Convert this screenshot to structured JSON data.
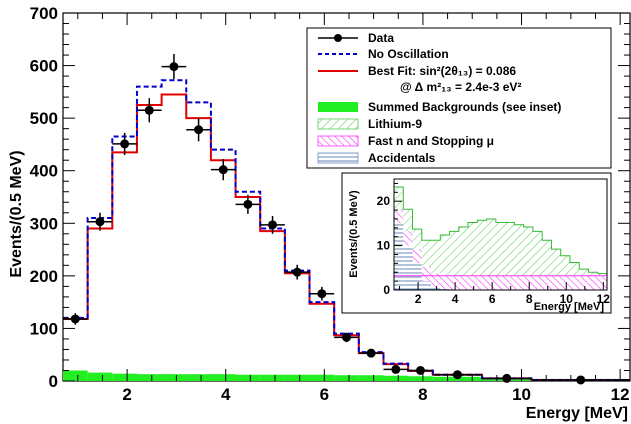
{
  "chart_data": [
    {
      "type": "line",
      "xlabel": "Energy [MeV]",
      "ylabel": "Events/(0.5 MeV)",
      "xlim": [
        0.7,
        12.2
      ],
      "ylim": [
        0,
        700
      ],
      "x_ticks": [
        "2",
        "4",
        "6",
        "8",
        "10",
        "12"
      ],
      "y_ticks": [
        "0",
        "100",
        "200",
        "300",
        "400",
        "500",
        "600",
        "700"
      ],
      "bin_edges": [
        0.7,
        1.2,
        1.7,
        2.2,
        2.7,
        3.2,
        3.7,
        4.2,
        4.7,
        5.2,
        5.7,
        6.2,
        6.7,
        7.2,
        7.7,
        8.2,
        9.2,
        10.2,
        12.2
      ],
      "series": [
        {
          "name": "Data",
          "style": "points",
          "color": "#000000",
          "x": [
            0.95,
            1.45,
            1.95,
            2.45,
            2.95,
            3.45,
            3.95,
            4.45,
            4.95,
            5.45,
            5.95,
            6.45,
            6.95,
            7.45,
            7.95,
            8.7,
            9.7,
            11.2
          ],
          "y": [
            118,
            303,
            451,
            515,
            598,
            478,
            402,
            336,
            297,
            207,
            166,
            83,
            53,
            22,
            20,
            12,
            5,
            2
          ],
          "yerr": [
            11,
            17,
            21,
            23,
            24,
            22,
            20,
            18,
            17,
            14,
            13,
            9,
            7,
            5,
            4,
            3,
            2,
            1
          ],
          "xerr": [
            0.25,
            0.25,
            0.25,
            0.25,
            0.25,
            0.25,
            0.25,
            0.25,
            0.25,
            0.25,
            0.25,
            0.25,
            0.25,
            0.25,
            0.25,
            0.5,
            0.5,
            1.0
          ]
        },
        {
          "name": "No Oscillation",
          "style": "histogram-dashed",
          "color": "#0000cc",
          "values": [
            120,
            310,
            465,
            560,
            572,
            530,
            440,
            360,
            290,
            210,
            150,
            90,
            55,
            33,
            20,
            12,
            5,
            2
          ]
        },
        {
          "name": "Best Fit: sin²(2θ₁₃) = 0.086",
          "style": "histogram-solid",
          "color": "#e00000",
          "values": [
            118,
            290,
            435,
            525,
            545,
            500,
            420,
            350,
            285,
            205,
            147,
            87,
            53,
            32,
            19,
            12,
            5,
            2
          ]
        },
        {
          "name": "Summed Backgrounds (see inset)",
          "style": "filled",
          "color": "#22ee22",
          "values": [
            20,
            16,
            14,
            13,
            13,
            13,
            13,
            12,
            12,
            12,
            12,
            11,
            11,
            10,
            9,
            8,
            6,
            4
          ]
        }
      ],
      "legend": {
        "placement": "top-right",
        "entries": [
          "Data",
          "No Oscillation",
          "Best Fit: sin²(2θ₁₃) = 0.086",
          "@ Δ m²₁₃ = 2.4e-3 eV²",
          "Summed Backgrounds (see inset)",
          "Lithium-9",
          "Fast n and Stopping μ",
          "Accidentals"
        ]
      }
    },
    {
      "type": "area",
      "title": "",
      "xlabel": "Energy [MeV]",
      "ylabel": "Events/(0.5 MeV)",
      "xlim": [
        0.7,
        12.2
      ],
      "ylim": [
        0,
        25
      ],
      "x_ticks": [
        "2",
        "4",
        "6",
        "8",
        "10",
        "12"
      ],
      "y_ticks": [
        "0",
        "10",
        "20"
      ],
      "bin_edges": [
        0.7,
        1.2,
        1.7,
        2.2,
        2.7,
        3.2,
        3.7,
        4.2,
        4.7,
        5.2,
        5.7,
        6.2,
        6.7,
        7.2,
        7.7,
        8.2,
        8.7,
        9.2,
        9.7,
        10.2,
        10.7,
        11.2,
        11.7,
        12.2
      ],
      "series": [
        {
          "name": "Accidentals",
          "values": [
            15,
            10,
            6,
            2,
            0.5,
            0.2,
            0,
            0,
            0,
            0,
            0,
            0,
            0,
            0,
            0,
            0,
            0,
            0,
            0,
            0,
            0,
            0,
            0
          ]
        },
        {
          "name": "Fast n and Stopping μ",
          "values": [
            3.2,
            3.2,
            3.2,
            3.2,
            3.2,
            3.2,
            3.2,
            3.2,
            3.2,
            3.2,
            3.2,
            3.2,
            3.2,
            3.2,
            3.2,
            3.2,
            3.2,
            3.2,
            3.2,
            3.2,
            3.2,
            3.2,
            3.2
          ]
        },
        {
          "name": "Lithium-9",
          "values": [
            5,
            5,
            4.5,
            6,
            7.5,
            9,
            10,
            11,
            12,
            12.5,
            12.8,
            12,
            12,
            11.5,
            11,
            10,
            8,
            6,
            4.5,
            3,
            1.5,
            0.8,
            0.5
          ]
        }
      ]
    }
  ]
}
